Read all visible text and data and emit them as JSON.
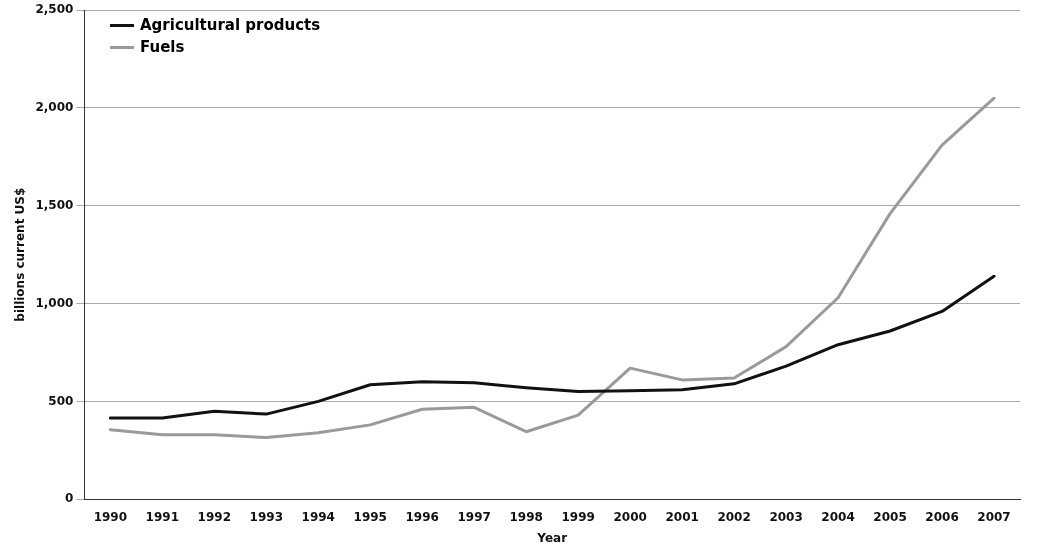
{
  "chart_data": {
    "type": "line",
    "xlabel": "Year",
    "ylabel": "billions current US$",
    "categories": [
      "1990",
      "1991",
      "1992",
      "1993",
      "1994",
      "1995",
      "1996",
      "1997",
      "1998",
      "1999",
      "2000",
      "2001",
      "2002",
      "2003",
      "2004",
      "2005",
      "2006",
      "2007"
    ],
    "series": [
      {
        "name": "Agricultural products",
        "color": "#111111",
        "values": [
          415,
          415,
          450,
          435,
          500,
          585,
          600,
          595,
          570,
          550,
          555,
          560,
          590,
          680,
          790,
          860,
          960,
          1140
        ]
      },
      {
        "name": "Fuels",
        "color": "#9a9a9a",
        "values": [
          355,
          330,
          330,
          315,
          340,
          380,
          460,
          470,
          345,
          430,
          670,
          610,
          620,
          780,
          1030,
          1460,
          1810,
          2050
        ]
      }
    ],
    "ylim": [
      0,
      2500
    ],
    "yticks": [
      {
        "value": 0,
        "label": "0"
      },
      {
        "value": 500,
        "label": "500"
      },
      {
        "value": 1000,
        "label": "1,000"
      },
      {
        "value": 1500,
        "label": "1,500"
      },
      {
        "value": 2000,
        "label": "2,000"
      },
      {
        "value": 2500,
        "label": "2,500"
      }
    ],
    "grid": "y",
    "legend": "top left",
    "marker": "none",
    "line_style": "solid"
  }
}
